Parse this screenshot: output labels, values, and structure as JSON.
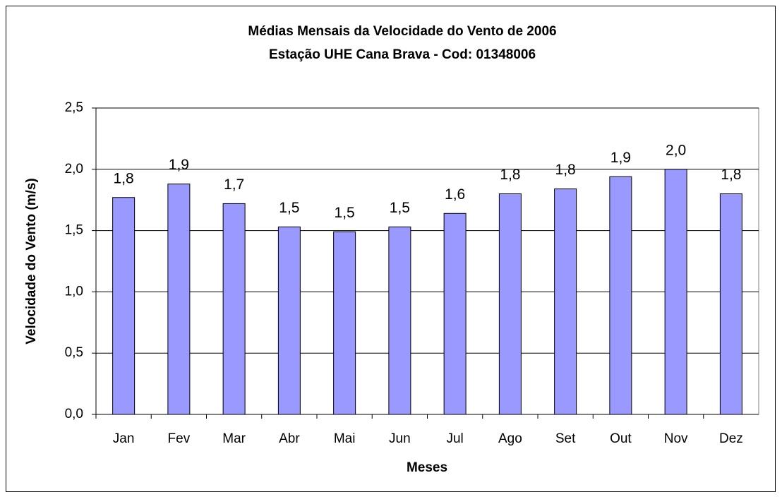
{
  "chart_data": {
    "type": "bar",
    "title": "Médias Mensais da Velocidade do Vento de 2006",
    "subtitle": "Estação UHE Cana Brava - Cod: 01348006",
    "x_label": "Meses",
    "y_label": "Velocidade do Vento (m/s)",
    "categories": [
      "Jan",
      "Fev",
      "Mar",
      "Abr",
      "Mai",
      "Jun",
      "Jul",
      "Ago",
      "Set",
      "Out",
      "Nov",
      "Dez"
    ],
    "values": [
      1.77,
      1.88,
      1.72,
      1.53,
      1.49,
      1.53,
      1.64,
      1.8,
      1.84,
      1.94,
      2.0,
      1.8
    ],
    "value_labels": [
      "1,8",
      "1,9",
      "1,7",
      "1,5",
      "1,5",
      "1,5",
      "1,6",
      "1,8",
      "1,8",
      "1,9",
      "2,0",
      "1,8"
    ],
    "color": "#9999ff",
    "ylim": [
      0,
      2.5
    ],
    "yticks": [
      {
        "value": 0,
        "label": "0,0"
      },
      {
        "value": 0.5,
        "label": "0,5"
      },
      {
        "value": 1,
        "label": "1,0"
      },
      {
        "value": 1.5,
        "label": "1,5"
      },
      {
        "value": 2,
        "label": "2,0"
      },
      {
        "value": 2.5,
        "label": "2,5"
      }
    ],
    "grid": true
  }
}
